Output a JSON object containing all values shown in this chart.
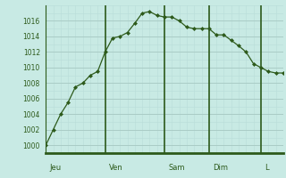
{
  "background_color": "#c8eae4",
  "plot_bg_color": "#c8eae4",
  "line_color": "#2d5a1b",
  "marker_color": "#2d5a1b",
  "grid_color_major": "#aaccc6",
  "grid_color_minor": "#b8ddd8",
  "axis_bar_color": "#2d5a1b",
  "tick_label_color": "#2d5a1b",
  "ylim": [
    999,
    1018
  ],
  "yticks": [
    1000,
    1002,
    1004,
    1006,
    1008,
    1010,
    1012,
    1014,
    1016
  ],
  "x_day_labels": [
    "Jeu",
    "Ven",
    "Sam",
    "Dim",
    "L"
  ],
  "x_day_positions": [
    0,
    8,
    16,
    22,
    29
  ],
  "y_values": [
    1000,
    1002,
    1004,
    1005.5,
    1007.5,
    1008,
    1009,
    1009.5,
    1012,
    1013.8,
    1014,
    1014.5,
    1015.7,
    1017,
    1017.2,
    1016.7,
    1016.5,
    1016.5,
    1016.0,
    1015.2,
    1015.0,
    1015.0,
    1015.0,
    1014.2,
    1014.2,
    1013.5,
    1012.8,
    1012.0,
    1010.5,
    1010.0,
    1009.5,
    1009.3,
    1009.3
  ]
}
